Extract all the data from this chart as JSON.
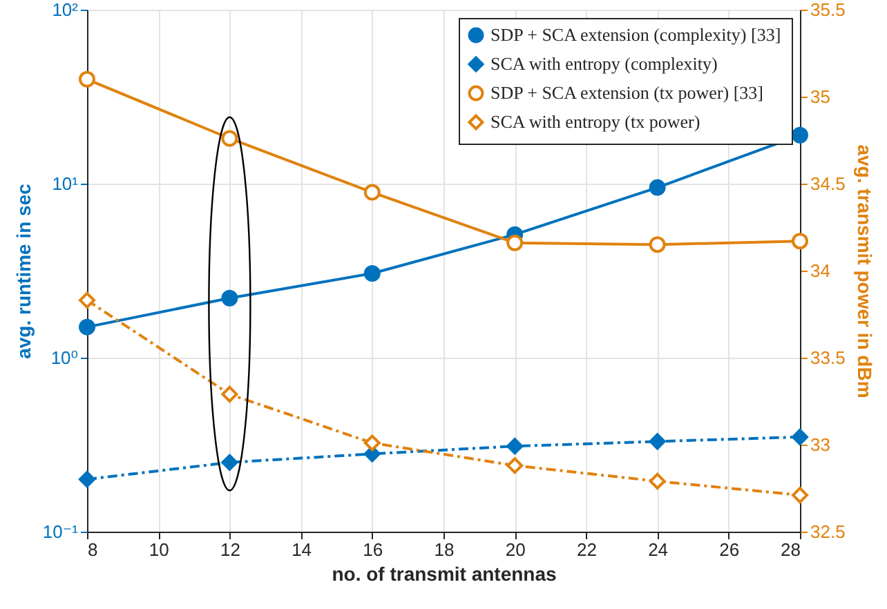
{
  "chart_data": {
    "type": "line",
    "x": [
      8,
      12,
      16,
      20,
      24,
      28
    ],
    "xlabel": "no. of transmit antennas",
    "ylabel": "avg. runtime in sec",
    "y2label": "avg. transmit power in dBm",
    "series": [
      {
        "name": "SDP + SCA extension (complexity) [33]",
        "color": "#0072bd",
        "marker": "circle",
        "line_style": "solid",
        "values": [
          1.5,
          2.2,
          3.05,
          5.1,
          9.5,
          19
        ]
      },
      {
        "name": "SCA with entropy (complexity)",
        "color": "#0072bd",
        "marker": "diamond",
        "line_style": "dashed",
        "values": [
          0.2,
          0.25,
          0.28,
          0.31,
          0.33,
          0.35
        ]
      },
      {
        "name": "SDP + SCA extension (tx power) [33]",
        "color": "#e0820e",
        "marker": "circle",
        "line_style": "solid",
        "axis": "y2",
        "values": [
          35.1,
          34.76,
          34.45,
          34.16,
          34.15,
          34.17
        ]
      },
      {
        "name": "SCA with entropy (tx power)",
        "color": "#e0820e",
        "marker": "diamond",
        "line_style": "dashed",
        "axis": "y2",
        "values": [
          33.83,
          33.29,
          33.01,
          32.88,
          32.79,
          32.71
        ]
      }
    ],
    "xlim": [
      8,
      28
    ],
    "xticks": [
      8,
      10,
      12,
      14,
      16,
      18,
      20,
      22,
      24,
      26,
      28
    ],
    "log": "y",
    "ylim": [
      0.1,
      100
    ],
    "yticks": [
      {
        "value": 0.1,
        "label": "10⁻¹"
      },
      {
        "value": 1,
        "label": "10⁰"
      },
      {
        "value": 10,
        "label": "10¹"
      },
      {
        "value": 100,
        "label": "10²"
      }
    ],
    "y2lim": [
      32.5,
      35.5
    ],
    "y2ticks": [
      32.5,
      33,
      33.5,
      34,
      34.5,
      35,
      35.5
    ],
    "grid": true,
    "legend": "top right"
  }
}
